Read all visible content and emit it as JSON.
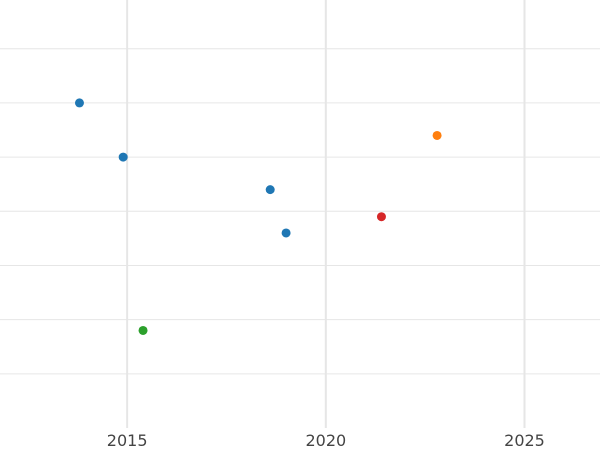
{
  "chart_data": {
    "type": "scatter",
    "title": "",
    "xlabel": "",
    "ylabel": "",
    "xlim": [
      2011.8,
      2026.9
    ],
    "ylim": [
      0,
      7.9
    ],
    "x_ticks": [
      2015,
      2020,
      2025
    ],
    "y_ticks": [
      1,
      2,
      3,
      4,
      5,
      6,
      7
    ],
    "grid": true,
    "legend": "none",
    "colors": {
      "grid": "#e6e6e6",
      "tick_label": "#444444",
      "background": "#ffffff"
    },
    "points": [
      {
        "x": 2013.8,
        "y": 6.0,
        "color": "#1f77b4"
      },
      {
        "x": 2014.9,
        "y": 5.0,
        "color": "#1f77b4"
      },
      {
        "x": 2018.6,
        "y": 4.4,
        "color": "#1f77b4"
      },
      {
        "x": 2019.0,
        "y": 3.6,
        "color": "#1f77b4"
      },
      {
        "x": 2022.8,
        "y": 5.4,
        "color": "#ff7f0e"
      },
      {
        "x": 2021.4,
        "y": 3.9,
        "color": "#d62728"
      },
      {
        "x": 2015.4,
        "y": 1.8,
        "color": "#2ca02c"
      }
    ]
  }
}
